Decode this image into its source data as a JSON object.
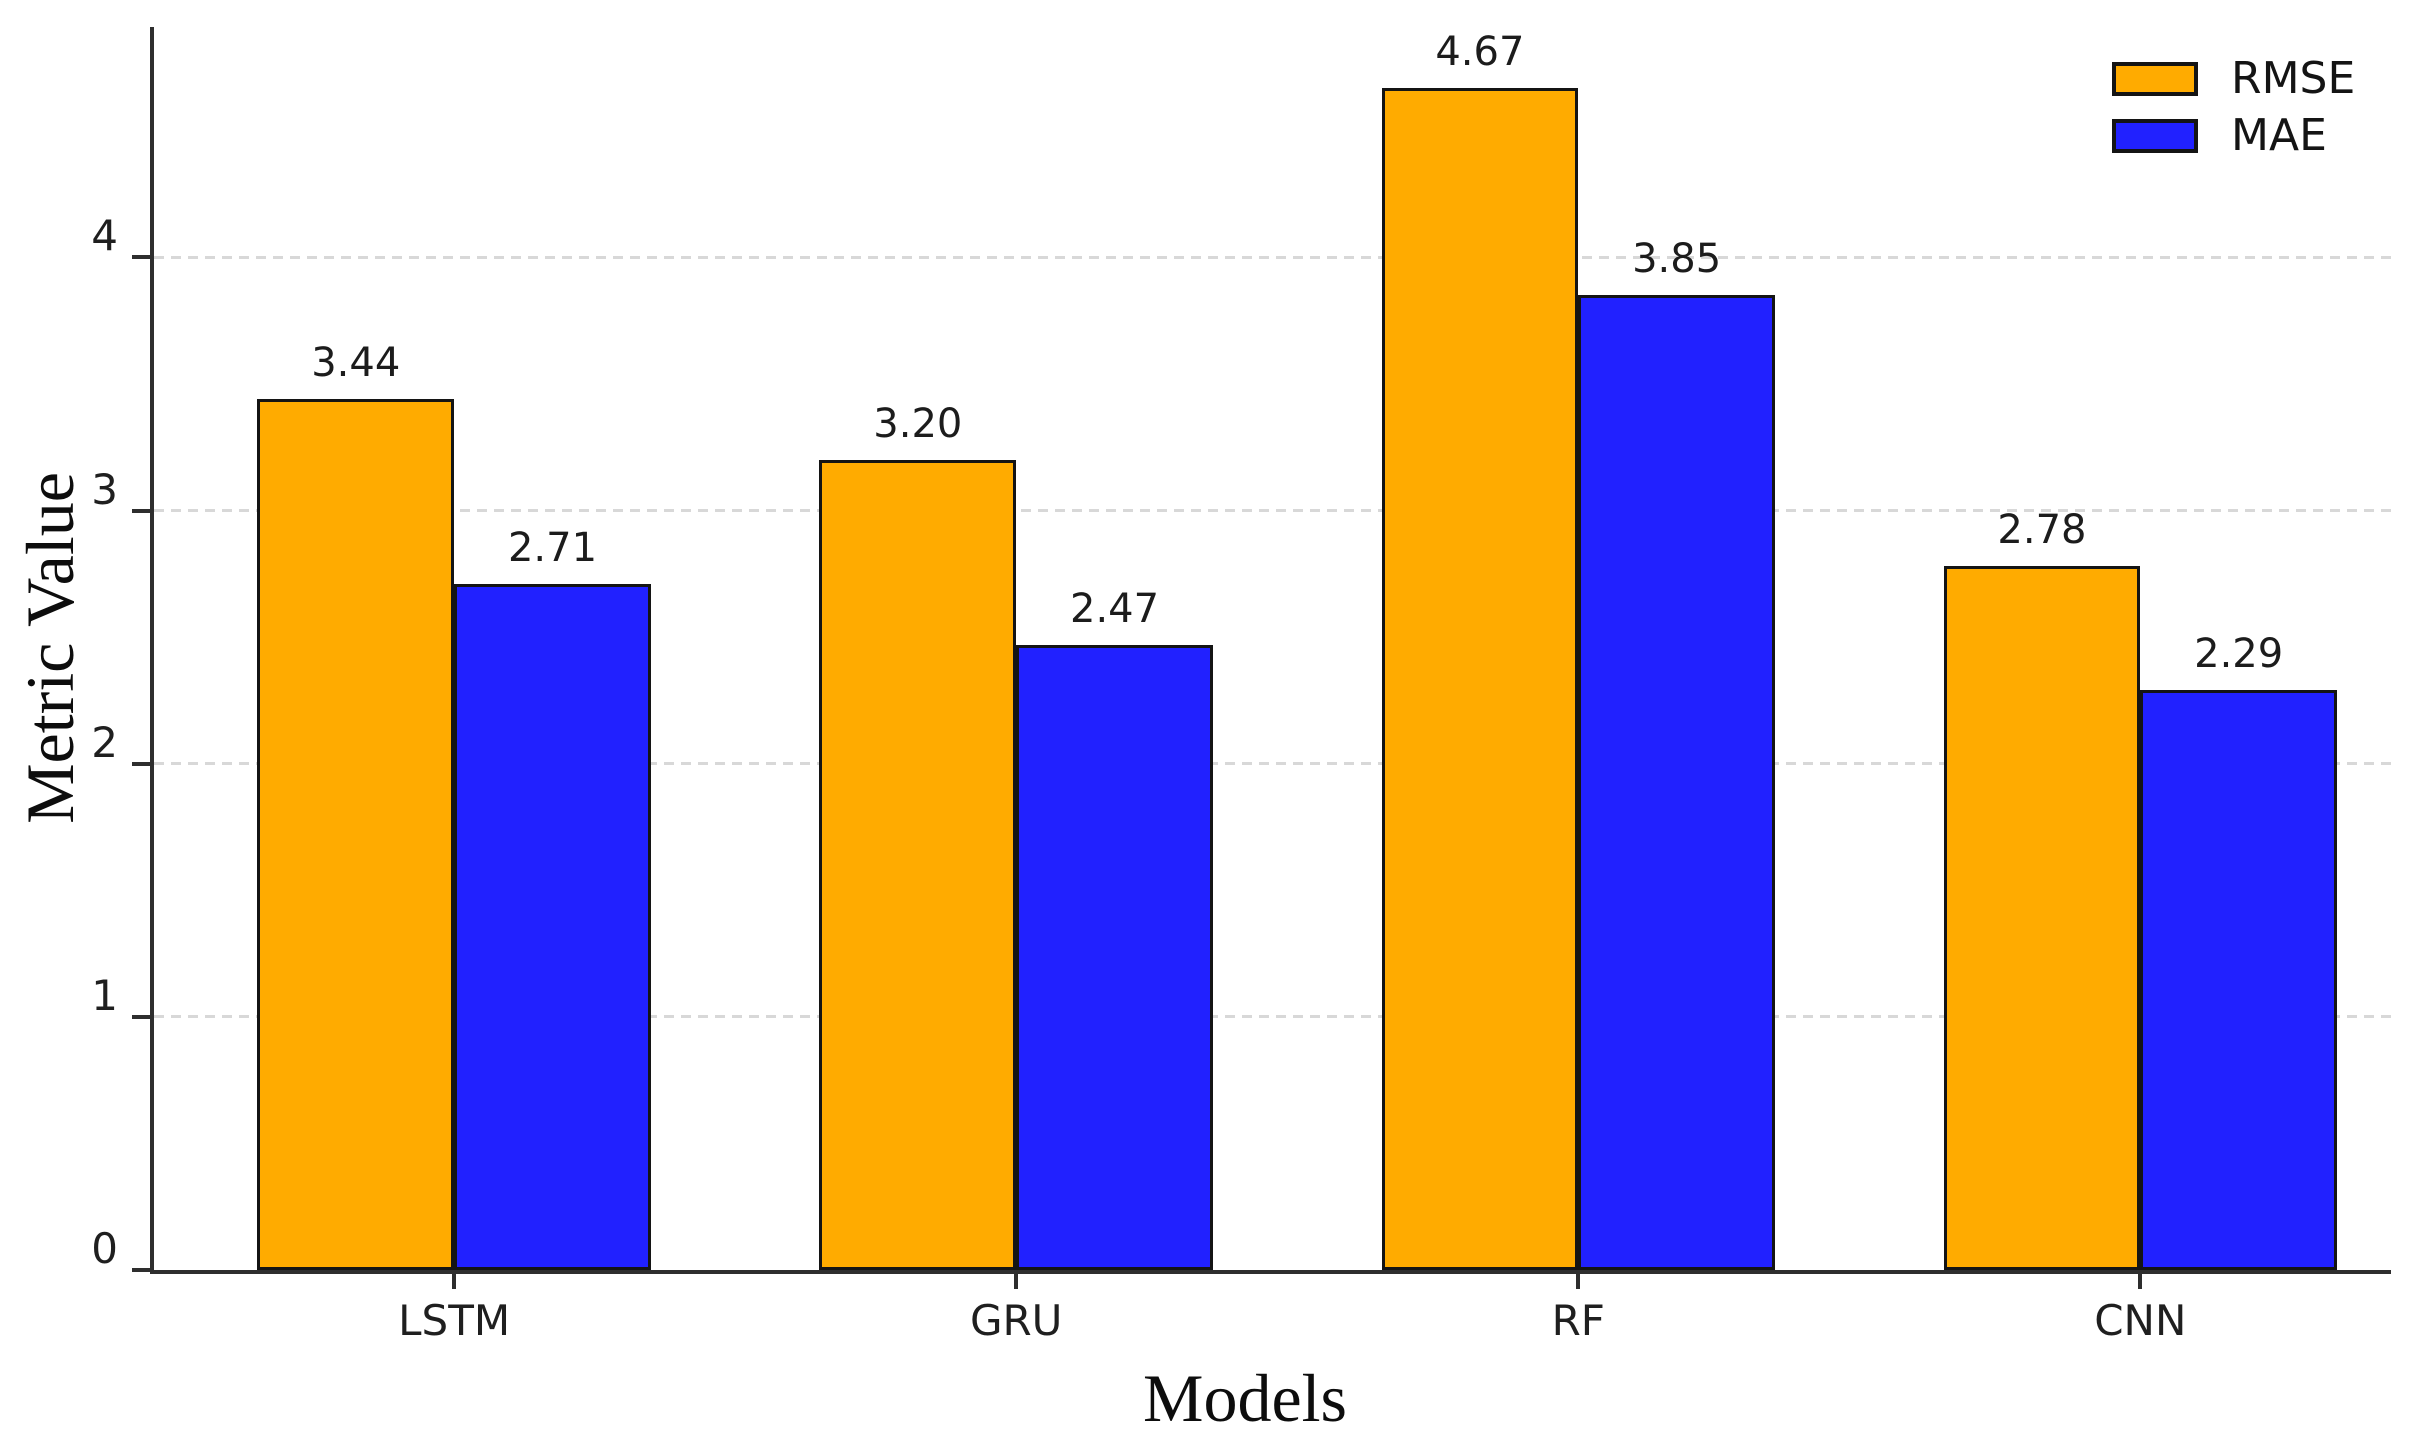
{
  "chart_data": {
    "type": "bar",
    "title": "",
    "xlabel": "Models",
    "ylabel": "Metric Value",
    "categories": [
      "LSTM",
      "GRU",
      "RF",
      "CNN"
    ],
    "series": [
      {
        "name": "RMSE",
        "color": "#FFAB00",
        "values": [
          3.44,
          3.2,
          4.67,
          2.78
        ]
      },
      {
        "name": "MAE",
        "color": "#2121FF",
        "values": [
          2.71,
          2.47,
          3.85,
          2.29
        ]
      }
    ],
    "yticks": [
      0,
      1,
      2,
      3,
      4
    ],
    "ylim": [
      0,
      4.91
    ],
    "xlim": [
      -0.534,
      3.446
    ],
    "bar_width": 0.35,
    "grid": "horizontal-dashed",
    "grid_color": "#d8d8d8",
    "bar_edge_color": "#141414",
    "spine_color": "#2e2e2e",
    "legend_position": "upper-right",
    "value_label_decimals": 2
  }
}
